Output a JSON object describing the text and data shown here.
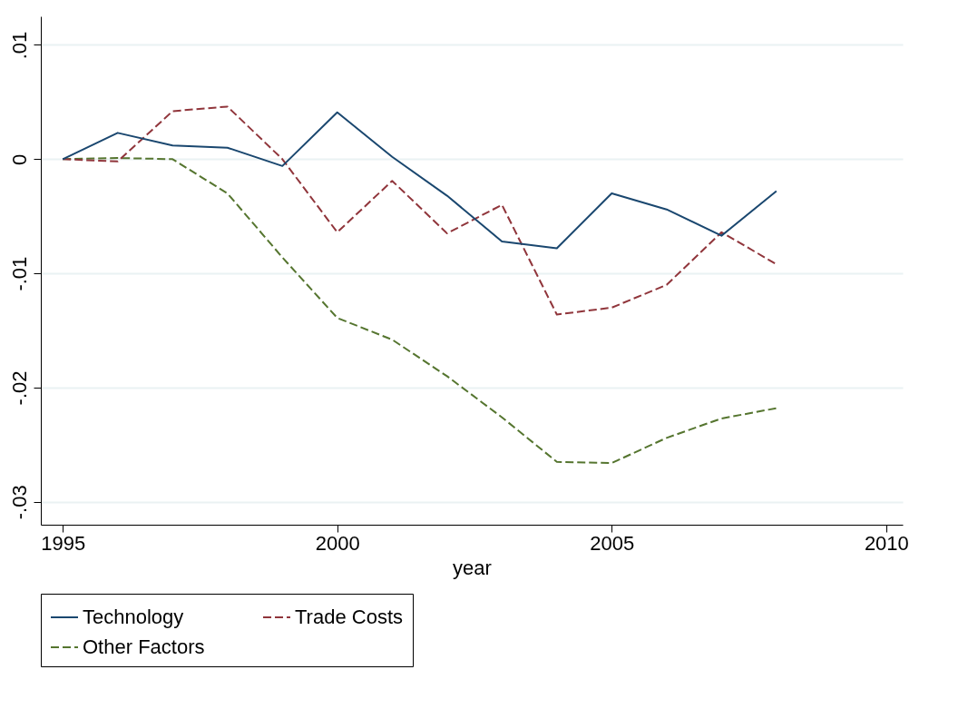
{
  "chart_data": {
    "type": "line",
    "xlabel": "year",
    "x": [
      1995,
      1996,
      1997,
      1998,
      1999,
      2000,
      2001,
      2002,
      2003,
      2004,
      2005,
      2006,
      2007,
      2008
    ],
    "series": [
      {
        "name": "Technology",
        "color": "#1a476f",
        "line_style": "solid",
        "values": [
          0,
          0.0023,
          0.0012,
          0.001,
          -0.0006,
          0.0041,
          0.0002,
          -0.0032,
          -0.0072,
          -0.0078,
          -0.003,
          -0.0044,
          -0.0067,
          -0.0028
        ]
      },
      {
        "name": "Trade Costs",
        "color": "#90353b",
        "line_style": "dashed",
        "values": [
          0,
          -0.0002,
          0.0042,
          0.0046,
          0,
          -0.0064,
          -0.0019,
          -0.0065,
          -0.004,
          -0.0136,
          -0.013,
          -0.011,
          -0.0064,
          -0.0092
        ]
      },
      {
        "name": "Other Factors",
        "color": "#55752f",
        "line_style": "dashed",
        "values": [
          0,
          0.0001,
          0,
          -0.003,
          -0.0086,
          -0.0139,
          -0.0158,
          -0.019,
          -0.0226,
          -0.0265,
          -0.0266,
          -0.0244,
          -0.0227,
          -0.0218
        ]
      }
    ],
    "xlim": [
      1994.6,
      2010.3
    ],
    "xticks": [
      1995,
      2000,
      2005,
      2010
    ],
    "ylim": [
      -0.032,
      0.0125
    ],
    "yticks": [
      {
        "value": -0.03,
        "label": "-.03"
      },
      {
        "value": -0.02,
        "label": "-.02"
      },
      {
        "value": -0.01,
        "label": "-.01"
      },
      {
        "value": 0,
        "label": "0"
      },
      {
        "value": 0.01,
        "label": ".01"
      }
    ],
    "grid": "y",
    "legend": "bottom",
    "marker": "none"
  }
}
